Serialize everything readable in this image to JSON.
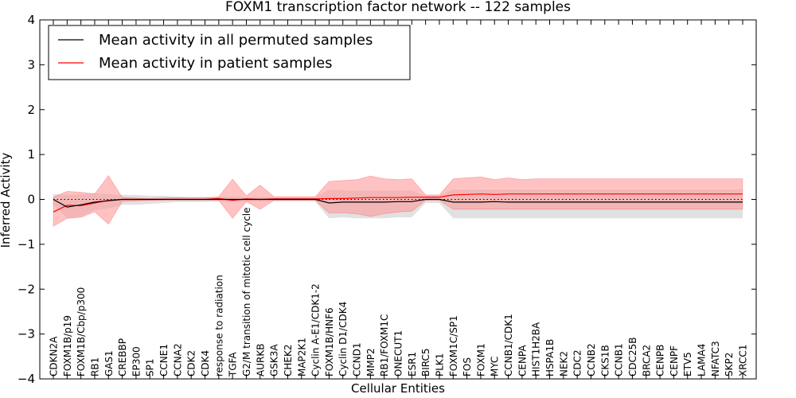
{
  "chart_data": {
    "type": "line",
    "title": "FOXM1 transcription factor network -- 122 samples",
    "xlabel": "Cellular Entities",
    "ylabel": "Inferred Activity",
    "ylim": [
      -4,
      4
    ],
    "yticks": [
      -4,
      -3,
      -2,
      -1,
      0,
      1,
      2,
      3,
      4
    ],
    "ytick_labels": [
      "−4",
      "−3",
      "−2",
      "−1",
      "0",
      "1",
      "2",
      "3",
      "4"
    ],
    "legend_position": "top-left",
    "categories": [
      "CDKN2A",
      "FOXM1B/p19",
      "FOXM1B/Cbp/p300",
      "RB1",
      "GAS1",
      "CREBBP",
      "EP300",
      "SP1",
      "CCNE1",
      "CCNA2",
      "CDK2",
      "CDK4",
      "response to radiation",
      "TGFA",
      "G2/M transition of mitotic cell cycle",
      "AURKB",
      "GSK3A",
      "CHEK2",
      "MAP2K1",
      "Cyclin A-E1/CDK1-2",
      "FOXM1B/HNF6",
      "Cyclin D1/CDK4",
      "CCND1",
      "MMP2",
      "RB1/FOXM1C",
      "ONECUT1",
      "ESR1",
      "BIRC5",
      "PLK1",
      "FOXM1C/SP1",
      "FOS",
      "FOXM1",
      "MYC",
      "CCNB1/CDK1",
      "CENPA",
      "HIST1H2BA",
      "HSPA1B",
      "NEK2",
      "CDC2",
      "CCNB2",
      "CKS1B",
      "CCNB1",
      "CDC25B",
      "BRCA2",
      "CENPB",
      "CENPF",
      "ETV5",
      "LAMA4",
      "NFATC3",
      "SKP2",
      "XRCC1"
    ],
    "series": [
      {
        "name": "Mean activity in all permuted samples",
        "color": "#000000",
        "band_color": "#c8c8c8",
        "values": [
          0,
          -0.17,
          -0.12,
          -0.06,
          -0.03,
          0,
          0,
          0,
          0,
          0,
          0,
          0,
          0,
          0,
          0,
          0,
          0,
          0,
          0,
          0,
          -0.08,
          -0.06,
          -0.06,
          -0.06,
          -0.06,
          -0.05,
          -0.05,
          0,
          0,
          -0.06,
          -0.06,
          -0.06,
          -0.05,
          -0.06,
          -0.06,
          -0.06,
          -0.06,
          -0.06,
          -0.06,
          -0.06,
          -0.06,
          -0.06,
          -0.06,
          -0.06,
          -0.06,
          -0.06,
          -0.06,
          -0.06,
          -0.06,
          -0.06,
          -0.06
        ],
        "band_low": [
          -0.12,
          -0.42,
          -0.38,
          -0.24,
          -0.2,
          -0.12,
          -0.12,
          -0.1,
          -0.08,
          -0.06,
          -0.06,
          -0.06,
          -0.05,
          -0.06,
          -0.05,
          -0.05,
          -0.05,
          -0.05,
          -0.05,
          -0.05,
          -0.42,
          -0.4,
          -0.42,
          -0.42,
          -0.42,
          -0.4,
          -0.4,
          -0.08,
          -0.08,
          -0.42,
          -0.42,
          -0.42,
          -0.42,
          -0.42,
          -0.42,
          -0.42,
          -0.42,
          -0.42,
          -0.42,
          -0.42,
          -0.42,
          -0.42,
          -0.42,
          -0.42,
          -0.42,
          -0.42,
          -0.42,
          -0.42,
          -0.42,
          -0.42,
          -0.42
        ],
        "band_high": [
          0.12,
          0.1,
          0.12,
          0.14,
          0.12,
          0.1,
          0.1,
          0.08,
          0.08,
          0.06,
          0.06,
          0.06,
          0.05,
          0.06,
          0.05,
          0.05,
          0.05,
          0.05,
          0.05,
          0.05,
          0.22,
          0.2,
          0.2,
          0.2,
          0.2,
          0.2,
          0.2,
          0.08,
          0.08,
          0.22,
          0.22,
          0.22,
          0.22,
          0.22,
          0.22,
          0.22,
          0.22,
          0.22,
          0.22,
          0.22,
          0.22,
          0.22,
          0.22,
          0.22,
          0.22,
          0.22,
          0.22,
          0.22,
          0.22,
          0.22,
          0.22
        ]
      },
      {
        "name": "Mean activity in patient samples",
        "color": "#ff0000",
        "band_color": "#ff9a9a",
        "values": [
          -0.28,
          -0.13,
          -0.14,
          -0.08,
          -0.02,
          0,
          0,
          0,
          0,
          0,
          0,
          0,
          0.02,
          -0.02,
          0.01,
          0,
          0.01,
          0.01,
          0.01,
          0.01,
          0.02,
          0.02,
          0.03,
          0.04,
          0.04,
          0.04,
          0.05,
          0.05,
          0.05,
          0.1,
          0.11,
          0.12,
          0.11,
          0.12,
          0.12,
          0.12,
          0.12,
          0.12,
          0.12,
          0.12,
          0.12,
          0.12,
          0.12,
          0.12,
          0.12,
          0.12,
          0.12,
          0.12,
          0.12,
          0.12,
          0.12
        ],
        "band_low": [
          -0.6,
          -0.42,
          -0.4,
          -0.28,
          -0.55,
          -0.04,
          -0.03,
          -0.02,
          -0.01,
          -0.01,
          -0.01,
          -0.01,
          -0.02,
          -0.42,
          -0.05,
          -0.22,
          -0.02,
          -0.02,
          -0.02,
          -0.02,
          -0.3,
          -0.3,
          -0.32,
          -0.38,
          -0.32,
          -0.28,
          -0.26,
          -0.02,
          -0.02,
          -0.22,
          -0.22,
          -0.22,
          -0.22,
          -0.22,
          -0.22,
          -0.22,
          -0.22,
          -0.22,
          -0.22,
          -0.22,
          -0.22,
          -0.22,
          -0.22,
          -0.22,
          -0.22,
          -0.22,
          -0.22,
          -0.22,
          -0.22,
          -0.22,
          -0.22
        ],
        "band_high": [
          0.05,
          0.18,
          0.16,
          0.12,
          0.53,
          0.04,
          0.03,
          0.02,
          0.03,
          0.04,
          0.03,
          0.03,
          0.06,
          0.45,
          0.08,
          0.32,
          0.06,
          0.06,
          0.06,
          0.06,
          0.4,
          0.42,
          0.44,
          0.52,
          0.46,
          0.44,
          0.46,
          0.1,
          0.1,
          0.46,
          0.48,
          0.5,
          0.44,
          0.48,
          0.44,
          0.46,
          0.46,
          0.46,
          0.46,
          0.46,
          0.46,
          0.46,
          0.46,
          0.46,
          0.46,
          0.46,
          0.46,
          0.46,
          0.46,
          0.46,
          0.46
        ]
      }
    ]
  }
}
